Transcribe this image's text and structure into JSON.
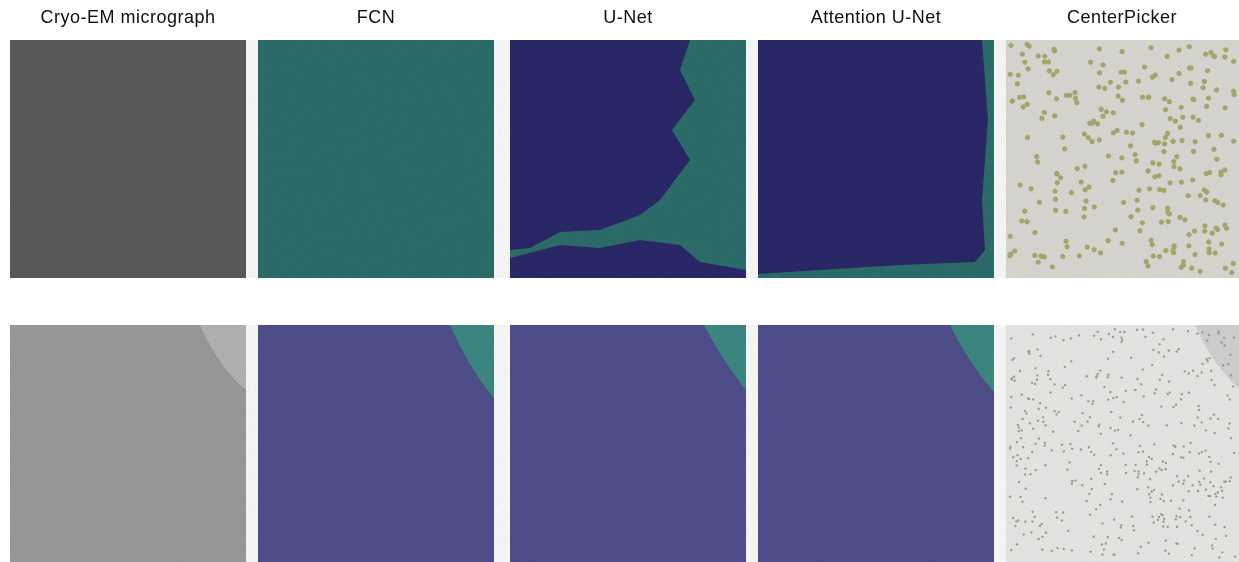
{
  "columns": [
    "Cryo-EM micrograph",
    "FCN",
    "U-Net",
    "Attention U-Net",
    "CenterPicker"
  ]
}
